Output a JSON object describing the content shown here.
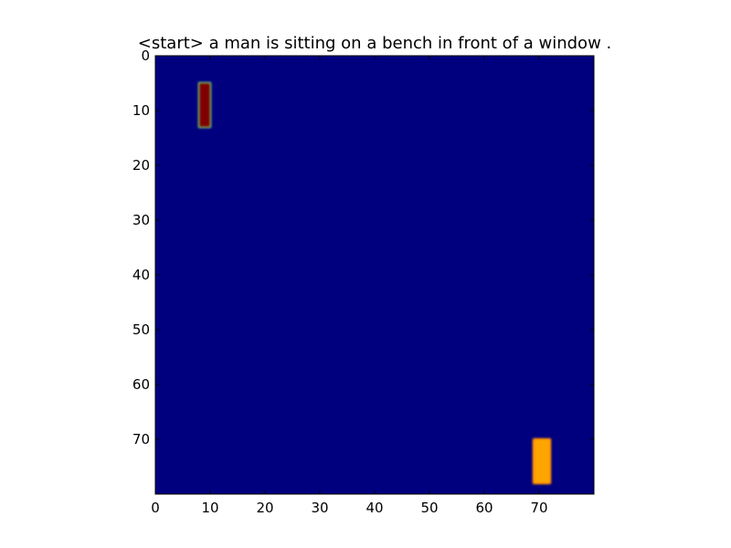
{
  "chart_data": {
    "type": "heatmap",
    "title": "<start> a man is sitting on a bench in front of a window .",
    "xlabel": "",
    "ylabel": "",
    "grid_size": [
      80,
      80
    ],
    "xlim": [
      0,
      80
    ],
    "ylim": [
      80,
      0
    ],
    "x_ticks": [
      0,
      10,
      20,
      30,
      40,
      50,
      60,
      70
    ],
    "y_ticks": [
      0,
      10,
      20,
      30,
      40,
      50,
      60,
      70
    ],
    "colormap": "jet",
    "background_color": "#00007f",
    "grid": false,
    "hotspots": [
      {
        "x_range": [
          8,
          10
        ],
        "y_range": [
          5,
          13
        ],
        "core_color": "#7f0000",
        "edge_color": "#7fff7f"
      },
      {
        "x_range": [
          69,
          72
        ],
        "y_range": [
          70,
          78
        ],
        "core_color": "#ffa500",
        "edge_color": "#ff7f00"
      }
    ]
  }
}
